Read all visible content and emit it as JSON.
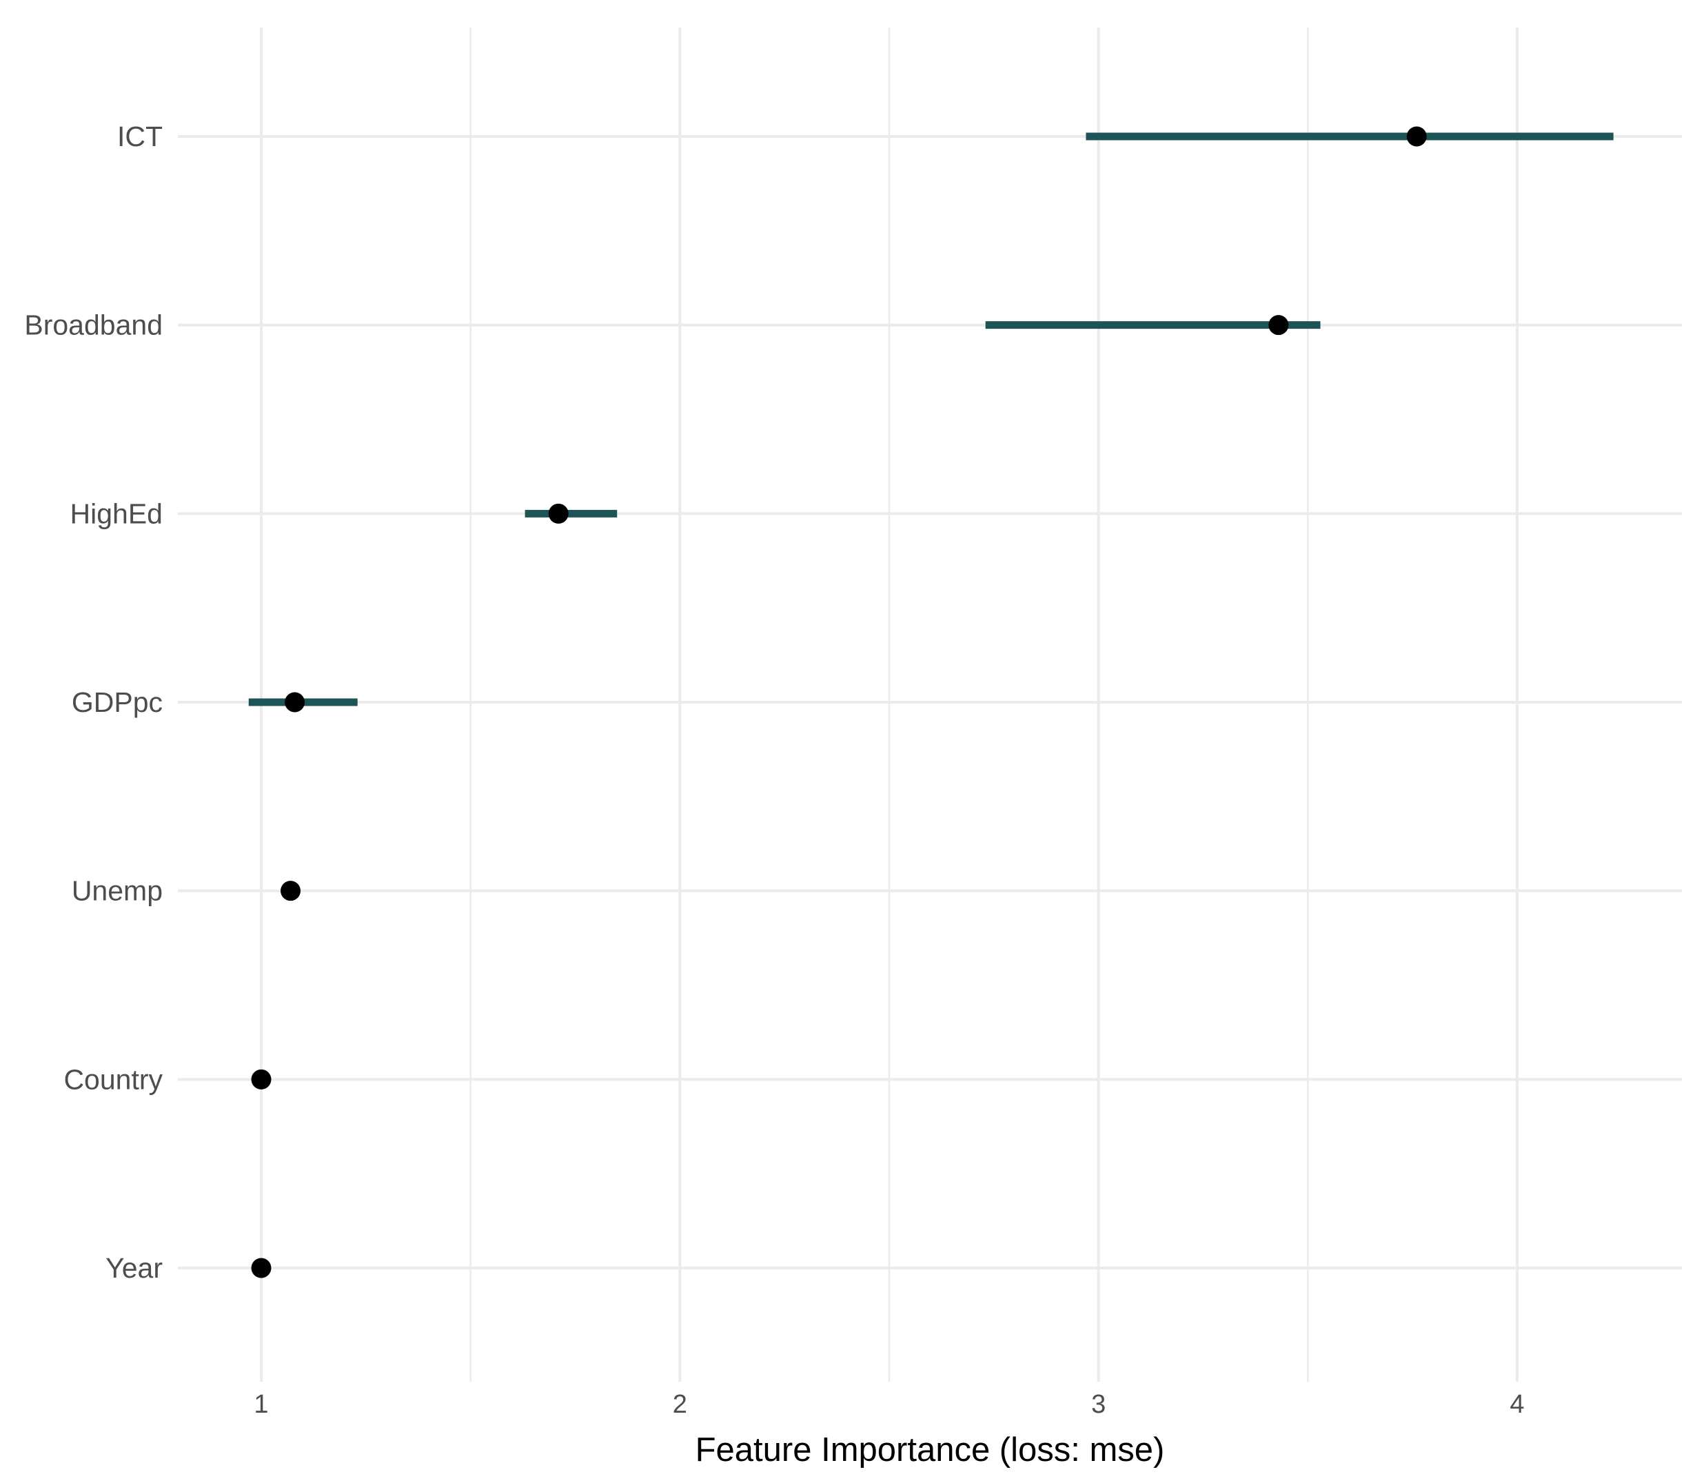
{
  "chart_data": {
    "type": "dot-interval",
    "title": "",
    "xlabel": "Feature Importance (loss: mse)",
    "ylabel": "",
    "xlim": [
      0.8,
      4.4
    ],
    "xticks": [
      1,
      2,
      3,
      4
    ],
    "xtick_labels": [
      "1",
      "2",
      "3",
      "4"
    ],
    "x_minor_gridlines": [
      1.5,
      2.5,
      3.5
    ],
    "grid": true,
    "categories": [
      "ICT",
      "Broadband",
      "HighEd",
      "GDPpc",
      "Unemp",
      "Country",
      "Year"
    ],
    "series": [
      {
        "name": "importance",
        "values": [
          3.76,
          3.43,
          1.71,
          1.08,
          1.07,
          1.0,
          1.0
        ],
        "lower": [
          2.97,
          2.73,
          1.63,
          0.97,
          1.07,
          1.0,
          1.0
        ],
        "upper": [
          4.23,
          3.53,
          1.85,
          1.23,
          1.07,
          1.0,
          1.0
        ]
      }
    ],
    "colors": {
      "interval": "#1d5455",
      "point": "#000000",
      "grid": "#ebebeb",
      "text": "#4d4d4d",
      "axis_title": "#000000"
    }
  }
}
